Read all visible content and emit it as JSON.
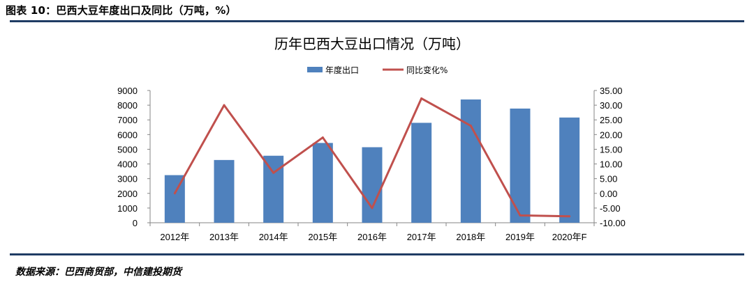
{
  "figure": {
    "title": "图表 10：巴西大豆年度出口及同比（万吨，%）",
    "source": "数据来源：巴西商贸部，中信建投期货"
  },
  "colors": {
    "bar": "#4f81bd",
    "line": "#c0504d",
    "rule": "#1f3c64",
    "axis": "#868686"
  },
  "chart_data": {
    "type": "bar",
    "title": "历年巴西大豆出口情况（万吨）",
    "categories": [
      "2012年",
      "2013年",
      "2014年",
      "2015年",
      "2016年",
      "2017年",
      "2018年",
      "2019年",
      "2020年F"
    ],
    "series": [
      {
        "name": "年度出口",
        "type": "bar",
        "axis": "left",
        "values": [
          3240,
          4270,
          4560,
          5430,
          5140,
          6800,
          8390,
          7770,
          7160
        ]
      },
      {
        "name": "同比变化%",
        "type": "line",
        "axis": "right",
        "values": [
          0,
          30.0,
          7.0,
          19.0,
          -5.0,
          32.3,
          23.0,
          -7.5,
          -7.8
        ]
      }
    ],
    "y_left": {
      "min": 0,
      "max": 9000,
      "step": 1000,
      "ticks": [
        "9000",
        "8000",
        "7000",
        "6000",
        "5000",
        "4000",
        "3000",
        "2000",
        "1000",
        "0"
      ]
    },
    "y_right": {
      "min": -10,
      "max": 35,
      "step": 5,
      "ticks": [
        "35.00",
        "30.00",
        "25.00",
        "20.00",
        "15.00",
        "10.00",
        "5.00",
        "0.00",
        "-5.00",
        "-10.00"
      ]
    },
    "legend": {
      "position": "top-center"
    },
    "grid": false
  }
}
